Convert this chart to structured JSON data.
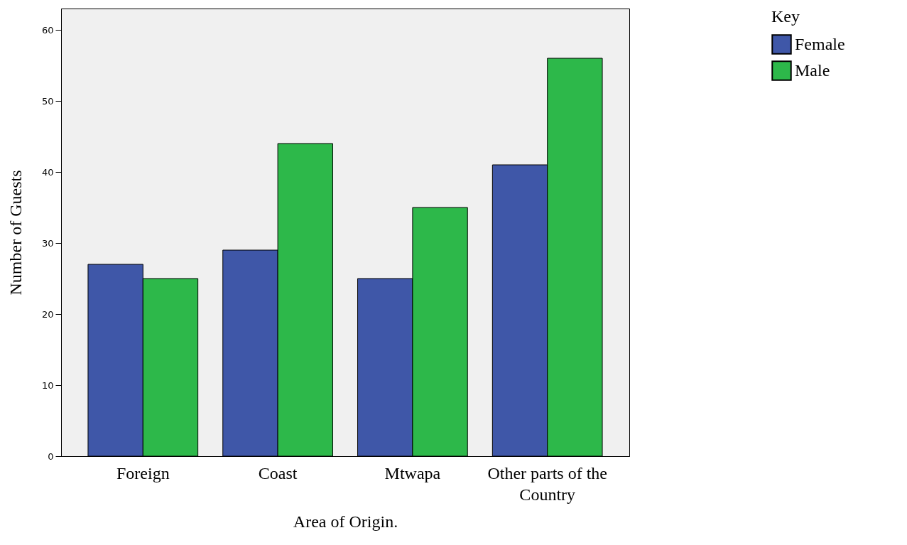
{
  "chart_data": {
    "type": "bar",
    "xlabel": "Area of Origin.",
    "ylabel": "Number of Guests",
    "legend_title": "Key",
    "categories": [
      "Foreign",
      "Coast",
      "Mtwapa",
      "Other parts of the Country"
    ],
    "series": [
      {
        "name": "Female",
        "color": "#3f57a8",
        "values": [
          27,
          29,
          25,
          41
        ]
      },
      {
        "name": "Male",
        "color": "#2db84a",
        "values": [
          25,
          44,
          35,
          56
        ]
      }
    ],
    "ylim": [
      0,
      63
    ],
    "yticks": [
      0,
      10,
      20,
      30,
      40,
      50,
      60
    ],
    "grid": false,
    "legend": "top right"
  }
}
